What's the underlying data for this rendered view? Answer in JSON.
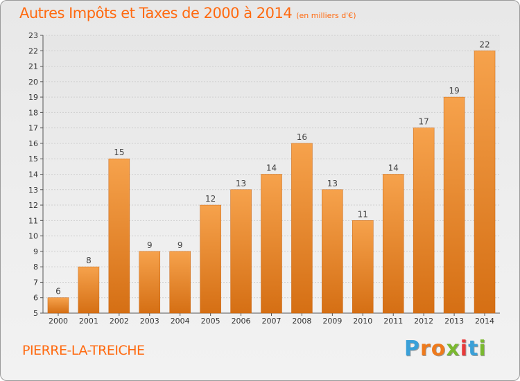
{
  "title": "Autres Impôts et Taxes de 2000 à 2014",
  "subtitle": "(en milliers d'€)",
  "commune": "PIERRE-LA-TREICHE",
  "logo": {
    "text": "Proxiti",
    "letter_colors": [
      "#3aa0d8",
      "#ee7a1c",
      "#ee7a1c",
      "#7ab830",
      "#e83a3a",
      "#3aa0d8",
      "#7ab830"
    ]
  },
  "colors": {
    "bar_top": "#f6a24c",
    "bar_bottom": "#d56f14",
    "accent": "#ff6a10",
    "grid": "#cfcfcf"
  },
  "chart_data": {
    "type": "bar",
    "title": "Autres Impôts et Taxes de 2000 à 2014",
    "subtitle": "(en milliers d'€)",
    "xlabel": "",
    "ylabel": "",
    "categories": [
      "2000",
      "2001",
      "2002",
      "2003",
      "2004",
      "2005",
      "2006",
      "2007",
      "2008",
      "2009",
      "2010",
      "2011",
      "2012",
      "2013",
      "2014"
    ],
    "values": [
      6,
      8,
      15,
      9,
      9,
      12,
      13,
      14,
      16,
      13,
      11,
      14,
      17,
      19,
      22
    ],
    "ylim": [
      5,
      23
    ],
    "yticks": [
      5,
      6,
      7,
      8,
      9,
      10,
      11,
      12,
      13,
      14,
      15,
      16,
      17,
      18,
      19,
      20,
      21,
      22,
      23
    ],
    "grid": true,
    "data_labels": true,
    "legend": "none"
  }
}
